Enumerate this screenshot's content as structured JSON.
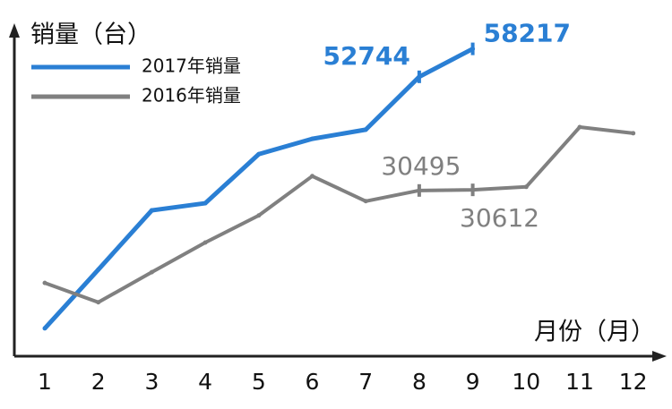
{
  "chart_data": {
    "type": "line",
    "y_axis_label": "销量（台）",
    "x_axis_label": "月份（月）",
    "categories": [
      "1",
      "2",
      "3",
      "4",
      "5",
      "6",
      "7",
      "8",
      "9",
      "10",
      "11",
      "12"
    ],
    "series": [
      {
        "name": "2017年销量",
        "color": "#2a7fd4",
        "values": [
          3500,
          15000,
          26600,
          28000,
          37600,
          40600,
          42400,
          52744,
          58217,
          null,
          null,
          null
        ],
        "labeled": [
          7,
          8
        ]
      },
      {
        "name": "2016年销量",
        "color": "#808080",
        "values": [
          12400,
          8600,
          14500,
          20300,
          25600,
          33300,
          28400,
          30495,
          30612,
          31200,
          42900,
          41700
        ],
        "labeled": [
          7,
          8
        ]
      }
    ],
    "ylim": [
      -3000,
      62000
    ],
    "legend": "top-left",
    "grid": false
  }
}
